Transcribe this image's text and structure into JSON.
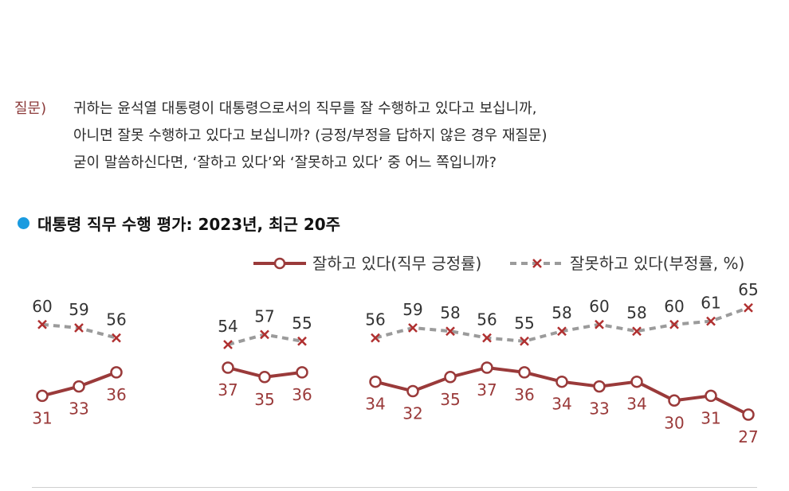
{
  "question": {
    "label": "질문)",
    "lines": [
      "귀하는 윤석열 대통령이 대통령으로서의 직무를 잘 수행하고 있다고 보십니까,",
      "아니면 잘못 수행하고 있다고 보십니까? (긍정/부정을 답하지 않은 경우 재질문)",
      "굳이 말씀하신다면, ‘잘하고 있다’와 ‘잘못하고 있다’ 중 어느 쪽입니까?"
    ]
  },
  "section_title": "대통령 직무 수행 평가: 2023년, 최근 20주",
  "colors": {
    "positive": "#9a3a3a",
    "negative": "#9b9b9b",
    "negative_marker": "#b03030",
    "bullet": "#1a9be0"
  },
  "chart_data": {
    "type": "line",
    "title": "대통령 직무 수행 평가: 2023년, 최근 20주",
    "xlabel": "",
    "ylabel": "",
    "legend_position": "top-right",
    "grid": false,
    "segments": [
      {
        "positive": [
          31,
          33,
          36
        ],
        "negative": [
          60,
          59,
          56
        ]
      },
      {
        "positive": [
          37,
          35,
          36
        ],
        "negative": [
          54,
          57,
          55
        ]
      },
      {
        "positive": [
          34,
          32,
          35,
          37,
          36,
          34,
          33,
          34,
          30,
          31,
          27
        ],
        "negative": [
          56,
          59,
          58,
          56,
          55,
          58,
          60,
          58,
          60,
          61,
          65
        ]
      }
    ],
    "series": [
      {
        "name": "잘하고 있다(직무 긍정률)",
        "key": "positive",
        "marker": "circle"
      },
      {
        "name": "잘못하고 있다(부정률, %)",
        "key": "negative",
        "marker": "x"
      }
    ]
  }
}
